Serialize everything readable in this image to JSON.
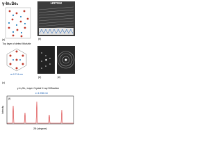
{
  "header": {
    "title": "γ-In₂Se₃"
  },
  "hrtem": {
    "label": "HRTEM",
    "panel": "(b)"
  },
  "structure": {
    "panel": "(a)"
  },
  "top_layer": {
    "label": "Top layer of defect Wurtzite",
    "annotation": "a=0.714 nm",
    "panel": "(c)"
  },
  "diffraction": {
    "panels": [
      "(d)",
      "(e)"
    ]
  },
  "xrd": {
    "title": "γ-In₂Se₃ Layer Crystal X-ray Diffraction",
    "annotation": "c=1.936 nm",
    "x_label": "2θ (degree)",
    "y_label": "Intensity",
    "panel": "(f)"
  }
}
